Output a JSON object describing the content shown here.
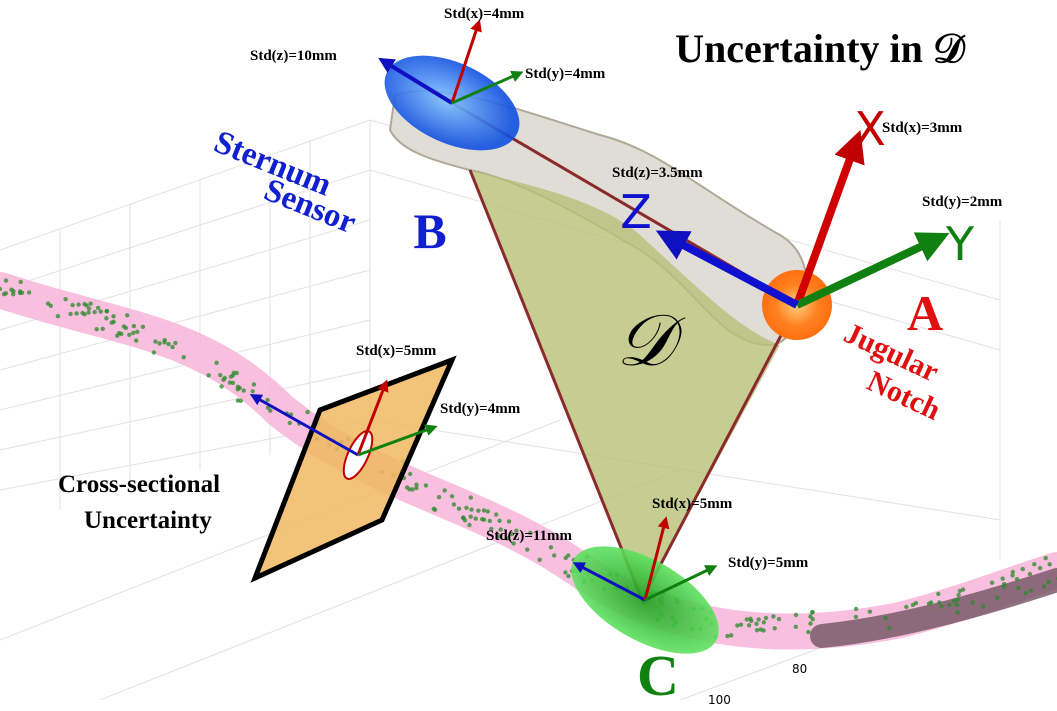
{
  "title": "Uncertainty in 𝒟",
  "region_label": "𝒟",
  "axes": {
    "x": "X",
    "y": "Y",
    "z": "Z"
  },
  "sensors": [
    {
      "label": "B",
      "name_lines": [
        "Sternum",
        "Sensor"
      ],
      "std": [
        "Std(x)=4mm",
        "Std(y)=4mm",
        "Std(z)=10mm"
      ]
    },
    {
      "label": "A",
      "name_lines": [
        "Jugular",
        "Notch"
      ],
      "std": [
        "Std(x)=3mm",
        "Std(y)=2mm",
        "Std(z)=3.5mm"
      ]
    },
    {
      "label": "C",
      "std": [
        "Std(x)=5mm",
        "Std(y)=5mm",
        "Std(z)=11mm"
      ]
    }
  ],
  "cross_section": {
    "label_lines": [
      "Cross-sectional",
      "Uncertainty"
    ],
    "std": [
      "Std(x)=5mm",
      "Std(y)=4mm"
    ]
  },
  "axis_ticks": [
    80,
    100
  ]
}
